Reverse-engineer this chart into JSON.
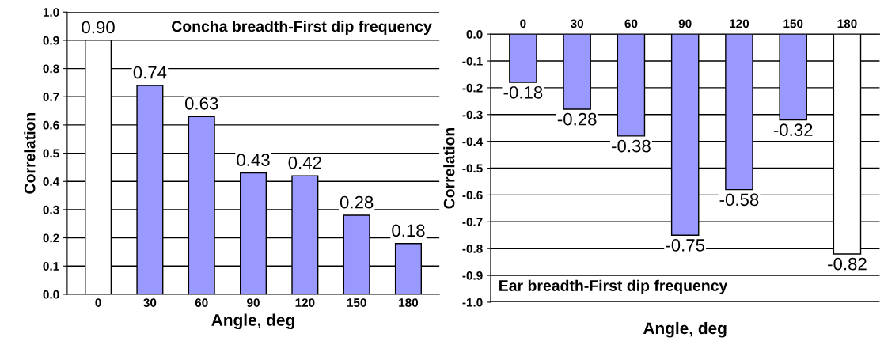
{
  "chart_data": [
    {
      "type": "bar",
      "title": "Concha breadth-First dip frequency",
      "xlabel": "Angle, deg",
      "ylabel": "Correlation",
      "categories": [
        "0",
        "30",
        "60",
        "90",
        "120",
        "150",
        "180"
      ],
      "values": [
        0.9,
        0.74,
        0.63,
        0.43,
        0.42,
        0.28,
        0.18
      ],
      "colors": [
        "#ffffff",
        "#9999ff",
        "#9999ff",
        "#9999ff",
        "#9999ff",
        "#9999ff",
        "#9999ff"
      ],
      "value_labels": [
        "0.90",
        "0.74",
        "0.63",
        "0.43",
        "0.42",
        "0.28",
        "0.18"
      ],
      "ylim": [
        0,
        1.0
      ],
      "yticks": [
        {
          "value": 0,
          "label": "0.0"
        },
        {
          "value": 0.1,
          "label": "0.1"
        },
        {
          "value": 0.2,
          "label": "0.2"
        },
        {
          "value": 0.3,
          "label": "0.3"
        },
        {
          "value": 0.4,
          "label": "0.4"
        },
        {
          "value": 0.5,
          "label": "0.5"
        },
        {
          "value": 0.6,
          "label": "0.6"
        },
        {
          "value": 0.7,
          "label": "0.7"
        },
        {
          "value": 0.8,
          "label": "0.8"
        },
        {
          "value": 0.9,
          "label": "0.9"
        },
        {
          "value": 1.0,
          "label": "1.0"
        }
      ],
      "grid": "y"
    },
    {
      "type": "bar",
      "title": "Ear breadth-First dip frequency",
      "xlabel": "Angle, deg",
      "ylabel": "Correlation",
      "categories": [
        "0",
        "30",
        "60",
        "90",
        "120",
        "150",
        "180"
      ],
      "values": [
        -0.18,
        -0.28,
        -0.38,
        -0.75,
        -0.58,
        -0.32,
        -0.82
      ],
      "colors": [
        "#9999ff",
        "#9999ff",
        "#9999ff",
        "#9999ff",
        "#9999ff",
        "#9999ff",
        "#ffffff"
      ],
      "value_labels": [
        "-0.18",
        "-0.28",
        "-0.38",
        "-0.75",
        "-0.58",
        "-0.32",
        "-0.82"
      ],
      "ylim": [
        -1.0,
        0
      ],
      "yticks": [
        {
          "value": -1.0,
          "label": "-1.0"
        },
        {
          "value": -0.9,
          "label": "-0.9"
        },
        {
          "value": -0.8,
          "label": "-0.8"
        },
        {
          "value": -0.7,
          "label": "-0.7"
        },
        {
          "value": -0.6,
          "label": "-0.6"
        },
        {
          "value": -0.5,
          "label": "-0.5"
        },
        {
          "value": -0.4,
          "label": "-0.4"
        },
        {
          "value": -0.3,
          "label": "-0.3"
        },
        {
          "value": -0.2,
          "label": "-0.2"
        },
        {
          "value": -0.1,
          "label": "-0.1"
        },
        {
          "value": 0,
          "label": "0.0"
        }
      ],
      "grid": "y"
    }
  ]
}
